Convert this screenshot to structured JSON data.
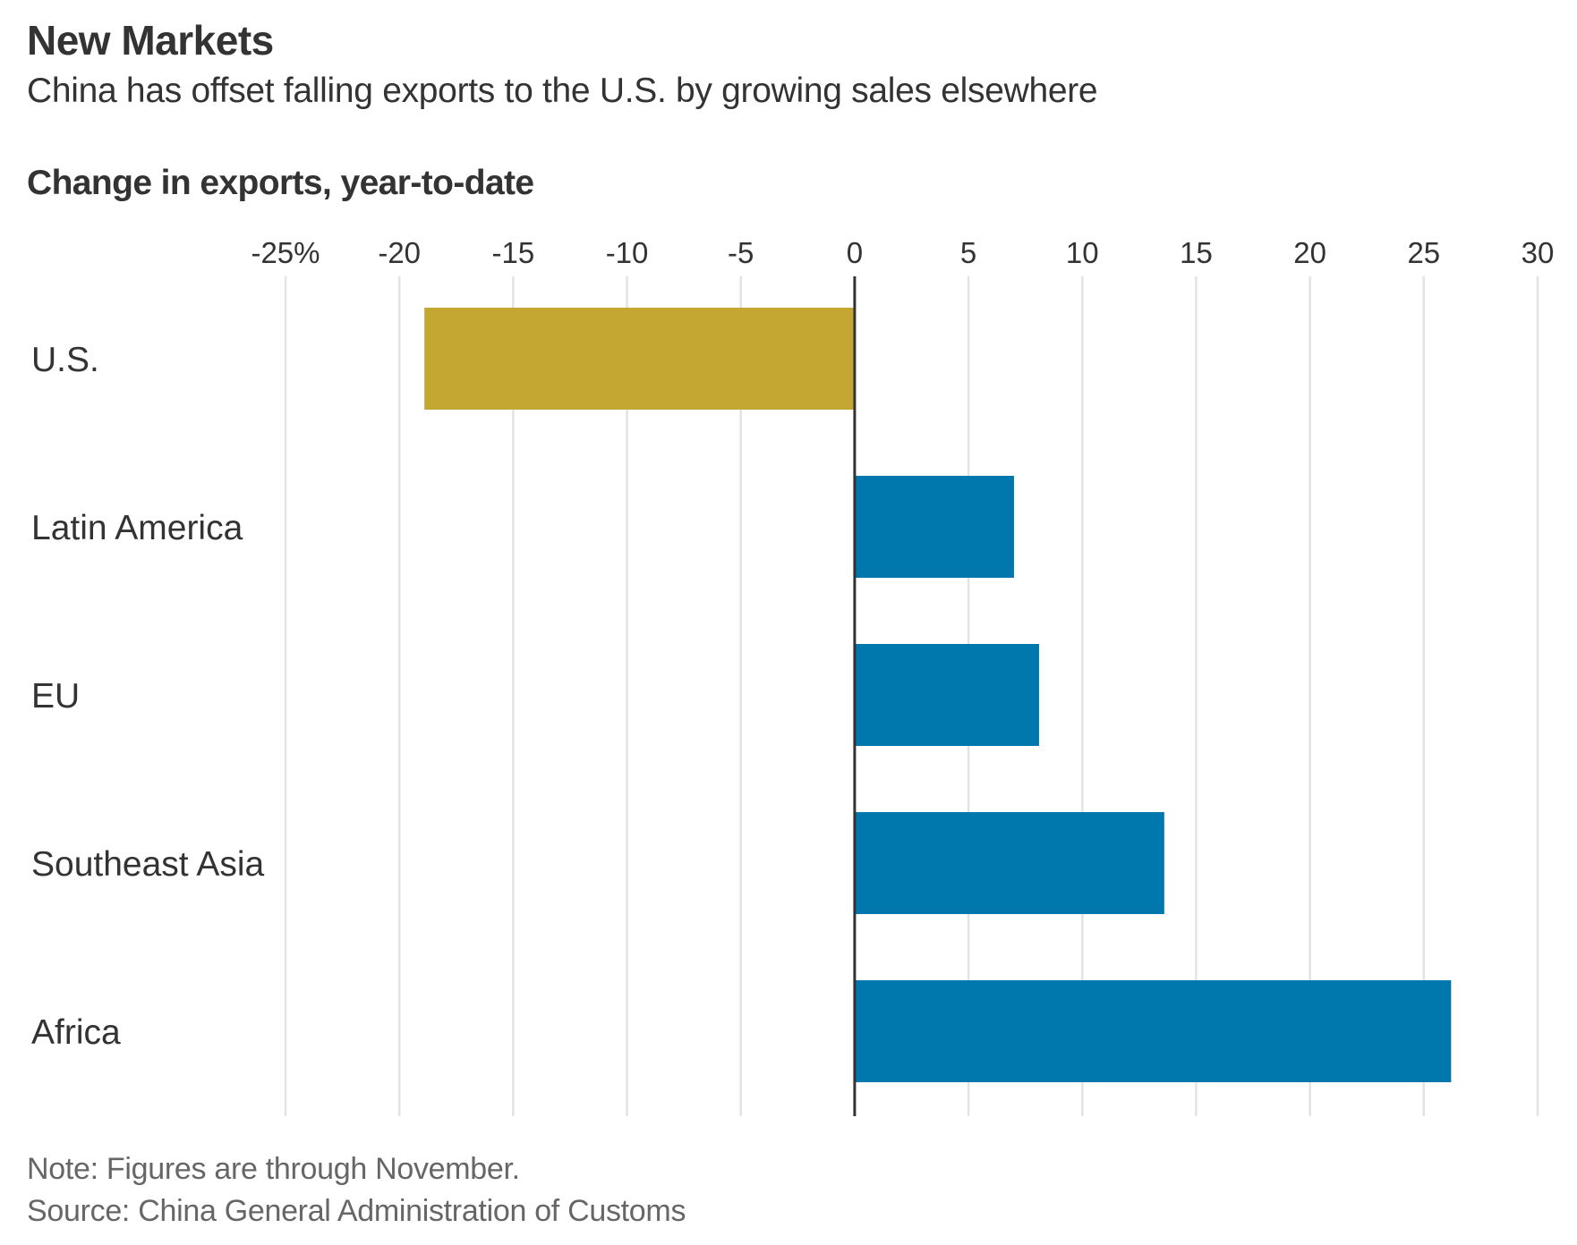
{
  "header": {
    "title": "New Markets",
    "subtitle": "China has offset falling exports to the U.S. by growing sales elsewhere",
    "section_title": "Change in exports, year-to-date"
  },
  "footer": {
    "note": "Note: Figures are through November.",
    "source": "Source: China General Administration of Customs"
  },
  "colors": {
    "negative_bar": "#C4A732",
    "positive_bar": "#0077AD",
    "gridline": "#E3E3E3",
    "zero_line": "#333333"
  },
  "chart_data": {
    "type": "bar",
    "orientation": "horizontal",
    "title": "New Markets",
    "subtitle": "China has offset falling exports to the U.S. by growing sales elsewhere",
    "xlabel": "Change in exports, year-to-date",
    "ylabel": "",
    "categories": [
      "U.S.",
      "Latin America",
      "EU",
      "Southeast Asia",
      "Africa"
    ],
    "values": [
      -18.9,
      7.0,
      8.1,
      13.6,
      26.2
    ],
    "unit": "%",
    "xlim": [
      -25,
      30
    ],
    "ticks": [
      -25,
      -20,
      -15,
      -10,
      -5,
      0,
      5,
      10,
      15,
      20,
      25,
      30
    ],
    "tick_labels": [
      "-25%",
      "-20",
      "-15",
      "-10",
      "-5",
      "0",
      "5",
      "10",
      "15",
      "20",
      "25",
      "30"
    ],
    "tick_position": "top",
    "grid": true,
    "legend": "none"
  }
}
